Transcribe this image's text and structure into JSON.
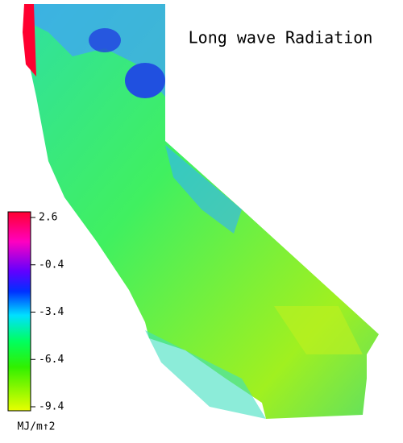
{
  "title": "Long wave Radiation",
  "colorbar": {
    "lim": [
      -9.4,
      2.6
    ],
    "ticks": [
      2.6,
      -0.4,
      -3.4,
      -6.4,
      -9.4
    ],
    "unit": "MJ/m↑2"
  }
}
